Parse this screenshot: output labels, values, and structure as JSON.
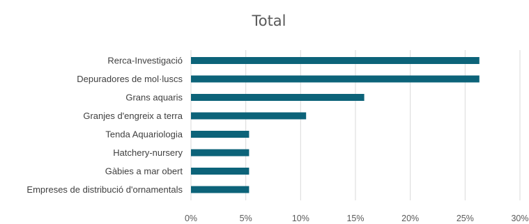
{
  "chart_data": {
    "type": "bar",
    "orientation": "horizontal",
    "title": "Total",
    "xlabel": "",
    "ylabel": "",
    "categories": [
      "Rerca-Investigació",
      "Depuradores de mol·luscs",
      "Grans aquaris",
      "Granjes d'engreix a terra",
      "Tenda Aquariologia",
      "Hatchery-nursery",
      "Gàbies a mar obert",
      "Empreses de distribució d'ornamentals"
    ],
    "values": [
      26.3,
      26.3,
      15.8,
      10.5,
      5.3,
      5.3,
      5.3,
      5.3
    ],
    "xlim": [
      0,
      30
    ],
    "ticks": [
      0,
      5,
      10,
      15,
      20,
      25,
      30
    ],
    "tick_labels": [
      "0%",
      "5%",
      "10%",
      "15%",
      "20%",
      "25%",
      "30%"
    ],
    "grid": true,
    "legend": "none",
    "bar_color": "#0c6379"
  }
}
